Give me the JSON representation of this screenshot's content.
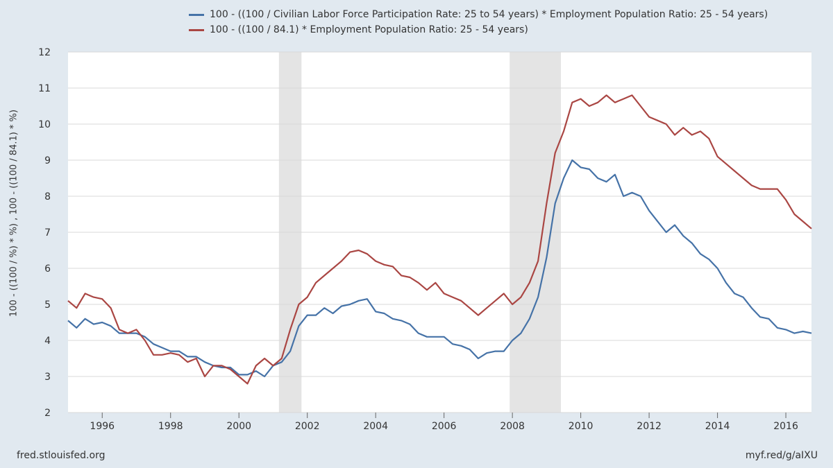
{
  "legend": [
    {
      "label": "100 - ((100 / Civilian Labor Force Participation Rate: 25 to 54 years) * Employment Population Ratio: 25 - 54 years)",
      "color": "#4572a7"
    },
    {
      "label": "100 - ((100 / 84.1) * Employment Population Ratio: 25 - 54 years)",
      "color": "#aa4643"
    }
  ],
  "footer": {
    "left": "fred.stlouisfed.org",
    "right": "myf.red/g/aIXU"
  },
  "chart_data": {
    "type": "line",
    "ylabel": "100 - ((100 / %) * %) , 100 - ((100 / 84.1) * %)",
    "xlim": [
      1995.0,
      2016.75
    ],
    "ylim": [
      2,
      12
    ],
    "yticks": [
      2,
      3,
      4,
      5,
      6,
      7,
      8,
      9,
      10,
      11,
      12
    ],
    "xticks": [
      "1996",
      "1998",
      "2000",
      "2002",
      "2004",
      "2006",
      "2008",
      "2010",
      "2012",
      "2014",
      "2016"
    ],
    "recessions": [
      [
        2001.17,
        2001.83
      ],
      [
        2007.92,
        2009.42
      ]
    ],
    "series": [
      {
        "name": "participation-adjusted",
        "color": "#4572a7",
        "x": [
          1995.0,
          1995.25,
          1995.5,
          1995.75,
          1996.0,
          1996.25,
          1996.5,
          1996.75,
          1997.0,
          1997.25,
          1997.5,
          1997.75,
          1998.0,
          1998.25,
          1998.5,
          1998.75,
          1999.0,
          1999.25,
          1999.5,
          1999.75,
          2000.0,
          2000.25,
          2000.5,
          2000.75,
          2001.0,
          2001.25,
          2001.5,
          2001.75,
          2002.0,
          2002.25,
          2002.5,
          2002.75,
          2003.0,
          2003.25,
          2003.5,
          2003.75,
          2004.0,
          2004.25,
          2004.5,
          2004.75,
          2005.0,
          2005.25,
          2005.5,
          2005.75,
          2006.0,
          2006.25,
          2006.5,
          2006.75,
          2007.0,
          2007.25,
          2007.5,
          2007.75,
          2008.0,
          2008.25,
          2008.5,
          2008.75,
          2009.0,
          2009.25,
          2009.5,
          2009.75,
          2010.0,
          2010.25,
          2010.5,
          2010.75,
          2011.0,
          2011.25,
          2011.5,
          2011.75,
          2012.0,
          2012.25,
          2012.5,
          2012.75,
          2013.0,
          2013.25,
          2013.5,
          2013.75,
          2014.0,
          2014.25,
          2014.5,
          2014.75,
          2015.0,
          2015.25,
          2015.5,
          2015.75,
          2016.0,
          2016.25,
          2016.5,
          2016.75
        ],
        "values": [
          4.55,
          4.35,
          4.6,
          4.45,
          4.5,
          4.4,
          4.2,
          4.2,
          4.2,
          4.1,
          3.9,
          3.8,
          3.7,
          3.7,
          3.55,
          3.55,
          3.4,
          3.3,
          3.25,
          3.25,
          3.05,
          3.05,
          3.15,
          3.0,
          3.3,
          3.4,
          3.7,
          4.4,
          4.7,
          4.7,
          4.9,
          4.75,
          4.95,
          5.0,
          5.1,
          5.15,
          4.8,
          4.75,
          4.6,
          4.55,
          4.45,
          4.2,
          4.1,
          4.1,
          4.1,
          3.9,
          3.85,
          3.75,
          3.5,
          3.65,
          3.7,
          3.7,
          4.0,
          4.2,
          4.6,
          5.2,
          6.3,
          7.8,
          8.5,
          9.0,
          8.8,
          8.75,
          8.5,
          8.4,
          8.6,
          8.0,
          8.1,
          8.0,
          7.6,
          7.3,
          7.0,
          7.2,
          6.9,
          6.7,
          6.4,
          6.25,
          6.0,
          5.6,
          5.3,
          5.2,
          4.9,
          4.65,
          4.6,
          4.35,
          4.3,
          4.2,
          4.25,
          4.2
        ]
      },
      {
        "name": "fixed-84.1",
        "color": "#aa4643",
        "x": [
          1995.0,
          1995.25,
          1995.5,
          1995.75,
          1996.0,
          1996.25,
          1996.5,
          1996.75,
          1997.0,
          1997.25,
          1997.5,
          1997.75,
          1998.0,
          1998.25,
          1998.5,
          1998.75,
          1999.0,
          1999.25,
          1999.5,
          1999.75,
          2000.0,
          2000.25,
          2000.5,
          2000.75,
          2001.0,
          2001.25,
          2001.5,
          2001.75,
          2002.0,
          2002.25,
          2002.5,
          2002.75,
          2003.0,
          2003.25,
          2003.5,
          2003.75,
          2004.0,
          2004.25,
          2004.5,
          2004.75,
          2005.0,
          2005.25,
          2005.5,
          2005.75,
          2006.0,
          2006.25,
          2006.5,
          2006.75,
          2007.0,
          2007.25,
          2007.5,
          2007.75,
          2008.0,
          2008.25,
          2008.5,
          2008.75,
          2009.0,
          2009.25,
          2009.5,
          2009.75,
          2010.0,
          2010.25,
          2010.5,
          2010.75,
          2011.0,
          2011.25,
          2011.5,
          2011.75,
          2012.0,
          2012.25,
          2012.5,
          2012.75,
          2013.0,
          2013.25,
          2013.5,
          2013.75,
          2014.0,
          2014.25,
          2014.5,
          2014.75,
          2015.0,
          2015.25,
          2015.5,
          2015.75,
          2016.0,
          2016.25,
          2016.5,
          2016.75
        ],
        "values": [
          5.1,
          4.9,
          5.3,
          5.2,
          5.15,
          4.9,
          4.3,
          4.2,
          4.3,
          4.0,
          3.6,
          3.6,
          3.65,
          3.6,
          3.4,
          3.5,
          3.0,
          3.3,
          3.3,
          3.2,
          3.0,
          2.8,
          3.3,
          3.5,
          3.3,
          3.5,
          4.3,
          5.0,
          5.2,
          5.6,
          5.8,
          6.0,
          6.2,
          6.45,
          6.5,
          6.4,
          6.2,
          6.1,
          6.05,
          5.8,
          5.75,
          5.6,
          5.4,
          5.6,
          5.3,
          5.2,
          5.1,
          4.9,
          4.7,
          4.9,
          5.1,
          5.3,
          5.0,
          5.2,
          5.6,
          6.2,
          7.8,
          9.2,
          9.8,
          10.6,
          10.7,
          10.5,
          10.6,
          10.8,
          10.6,
          10.7,
          10.8,
          10.5,
          10.2,
          10.1,
          10.0,
          9.7,
          9.9,
          9.7,
          9.8,
          9.6,
          9.1,
          8.9,
          8.7,
          8.5,
          8.3,
          8.2,
          8.2,
          8.2,
          7.9,
          7.5,
          7.3,
          7.1
        ]
      }
    ]
  }
}
